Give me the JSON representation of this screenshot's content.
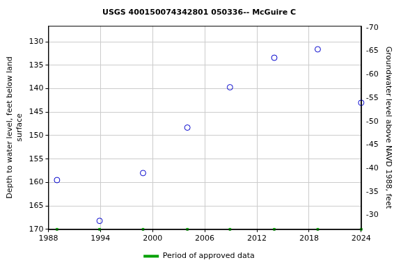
{
  "chart_data": {
    "type": "scatter",
    "title": "USGS 400150074342801 050336-- McGuire C",
    "x_label": null,
    "y_label": [
      "Depth to water level, feet below land",
      "surface"
    ],
    "y2_label": "Groundwater level above NAVD 1988, feet",
    "x": [
      1989.0,
      1993.9,
      1998.9,
      2004.0,
      2008.9,
      2014.0,
      2019.0,
      2024.0
    ],
    "values": [
      159.5,
      168.2,
      158.0,
      148.3,
      139.7,
      133.4,
      131.6,
      143.0
    ],
    "color": "#0000cc",
    "marker": "open_circle",
    "xlim": [
      1988,
      2024
    ],
    "xticks": [
      1988,
      1994,
      2000,
      2006,
      2012,
      2018,
      2024
    ],
    "ylim": [
      126.6,
      170
    ],
    "yticks": [
      130,
      135,
      140,
      145,
      150,
      155,
      160,
      165,
      170
    ],
    "y2lim": [
      -27.0,
      -70.4
    ],
    "y2ticks": [
      -30,
      -35,
      -40,
      -45,
      -50,
      -55,
      -60,
      -65,
      -70
    ],
    "grid": true,
    "legend": "bottom",
    "approved": {
      "name": "Period of approved data",
      "color": "#00a000",
      "x": [
        1989.0,
        1993.9,
        1998.9,
        2004.0,
        2008.9,
        2014.0,
        2019.0,
        2024.0
      ]
    }
  }
}
